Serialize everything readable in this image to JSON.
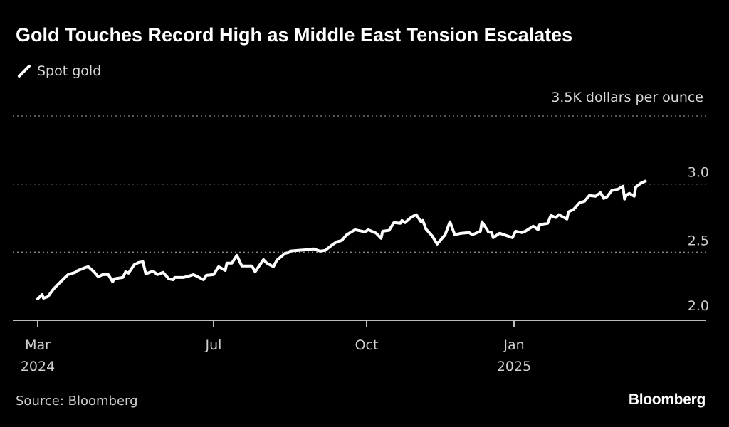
{
  "chart_data": {
    "type": "line",
    "title": "Gold Touches Record High as Middle East Tension Escalates",
    "unit_label": "3.5K dollars per ounce",
    "source": "Source: Bloomberg",
    "logo": "Bloomberg",
    "series": [
      {
        "name": "Spot gold",
        "color": "#ffffff",
        "points": [
          [
            "2024-03-01",
            2.157
          ],
          [
            "2024-03-04",
            2.188
          ],
          [
            "2024-03-05",
            2.162
          ],
          [
            "2024-03-08",
            2.173
          ],
          [
            "2024-03-12",
            2.23
          ],
          [
            "2024-03-15",
            2.262
          ],
          [
            "2024-03-19",
            2.304
          ],
          [
            "2024-03-22",
            2.335
          ],
          [
            "2024-03-27",
            2.351
          ],
          [
            "2024-03-28",
            2.361
          ],
          [
            "2024-04-03",
            2.387
          ],
          [
            "2024-04-05",
            2.393
          ],
          [
            "2024-04-09",
            2.356
          ],
          [
            "2024-04-12",
            2.319
          ],
          [
            "2024-04-15",
            2.335
          ],
          [
            "2024-04-19",
            2.335
          ],
          [
            "2024-04-22",
            2.283
          ],
          [
            "2024-04-23",
            2.304
          ],
          [
            "2024-04-29",
            2.314
          ],
          [
            "2024-05-01",
            2.356
          ],
          [
            "2024-05-03",
            2.346
          ],
          [
            "2024-05-07",
            2.408
          ],
          [
            "2024-05-10",
            2.424
          ],
          [
            "2024-05-13",
            2.429
          ],
          [
            "2024-05-15",
            2.34
          ],
          [
            "2024-05-20",
            2.361
          ],
          [
            "2024-05-23",
            2.335
          ],
          [
            "2024-05-27",
            2.351
          ],
          [
            "2024-05-31",
            2.304
          ],
          [
            "2024-06-03",
            2.298
          ],
          [
            "2024-06-04",
            2.314
          ],
          [
            "2024-06-10",
            2.314
          ],
          [
            "2024-06-14",
            2.325
          ],
          [
            "2024-06-17",
            2.335
          ],
          [
            "2024-06-24",
            2.298
          ],
          [
            "2024-06-26",
            2.33
          ],
          [
            "2024-07-01",
            2.335
          ],
          [
            "2024-07-04",
            2.393
          ],
          [
            "2024-07-08",
            2.366
          ],
          [
            "2024-07-09",
            2.419
          ],
          [
            "2024-07-12",
            2.419
          ],
          [
            "2024-07-15",
            2.476
          ],
          [
            "2024-07-18",
            2.398
          ],
          [
            "2024-07-24",
            2.398
          ],
          [
            "2024-07-26",
            2.356
          ],
          [
            "2024-07-31",
            2.445
          ],
          [
            "2024-08-02",
            2.419
          ],
          [
            "2024-08-06",
            2.393
          ],
          [
            "2024-08-08",
            2.44
          ],
          [
            "2024-08-13",
            2.492
          ],
          [
            "2024-08-15",
            2.497
          ],
          [
            "2024-08-16",
            2.508
          ],
          [
            "2024-08-21",
            2.513
          ],
          [
            "2024-08-26",
            2.518
          ],
          [
            "2024-08-30",
            2.524
          ],
          [
            "2024-09-03",
            2.508
          ],
          [
            "2024-09-06",
            2.513
          ],
          [
            "2024-09-11",
            2.56
          ],
          [
            "2024-09-13",
            2.576
          ],
          [
            "2024-09-16",
            2.586
          ],
          [
            "2024-09-19",
            2.628
          ],
          [
            "2024-09-24",
            2.665
          ],
          [
            "2024-09-30",
            2.649
          ],
          [
            "2024-10-02",
            2.665
          ],
          [
            "2024-10-07",
            2.639
          ],
          [
            "2024-10-10",
            2.602
          ],
          [
            "2024-10-11",
            2.654
          ],
          [
            "2024-10-15",
            2.66
          ],
          [
            "2024-10-18",
            2.717
          ],
          [
            "2024-10-22",
            2.712
          ],
          [
            "2024-10-23",
            2.733
          ],
          [
            "2024-10-25",
            2.717
          ],
          [
            "2024-10-28",
            2.749
          ],
          [
            "2024-10-30",
            2.764
          ],
          [
            "2024-11-01",
            2.775
          ],
          [
            "2024-11-04",
            2.723
          ],
          [
            "2024-11-05",
            2.733
          ],
          [
            "2024-11-07",
            2.67
          ],
          [
            "2024-11-11",
            2.618
          ],
          [
            "2024-11-14",
            2.56
          ],
          [
            "2024-11-19",
            2.628
          ],
          [
            "2024-11-22",
            2.723
          ],
          [
            "2024-11-25",
            2.628
          ],
          [
            "2024-11-29",
            2.639
          ],
          [
            "2024-12-04",
            2.644
          ],
          [
            "2024-12-06",
            2.628
          ],
          [
            "2024-12-11",
            2.654
          ],
          [
            "2024-12-12",
            2.723
          ],
          [
            "2024-12-16",
            2.649
          ],
          [
            "2024-12-18",
            2.644
          ],
          [
            "2024-12-19",
            2.607
          ],
          [
            "2024-12-23",
            2.639
          ],
          [
            "2024-12-27",
            2.623
          ],
          [
            "2024-12-31",
            2.607
          ],
          [
            "2025-01-02",
            2.654
          ],
          [
            "2025-01-06",
            2.644
          ],
          [
            "2025-01-08",
            2.654
          ],
          [
            "2025-01-13",
            2.691
          ],
          [
            "2025-01-16",
            2.665
          ],
          [
            "2025-01-17",
            2.702
          ],
          [
            "2025-01-22",
            2.712
          ],
          [
            "2025-01-24",
            2.77
          ],
          [
            "2025-01-27",
            2.754
          ],
          [
            "2025-01-29",
            2.775
          ],
          [
            "2025-02-03",
            2.743
          ],
          [
            "2025-02-04",
            2.796
          ],
          [
            "2025-02-07",
            2.812
          ],
          [
            "2025-02-11",
            2.864
          ],
          [
            "2025-02-14",
            2.874
          ],
          [
            "2025-02-17",
            2.916
          ],
          [
            "2025-02-21",
            2.911
          ],
          [
            "2025-02-24",
            2.937
          ],
          [
            "2025-02-26",
            2.895
          ],
          [
            "2025-02-28",
            2.906
          ],
          [
            "2025-03-03",
            2.953
          ],
          [
            "2025-03-07",
            2.963
          ],
          [
            "2025-03-10",
            2.984
          ],
          [
            "2025-03-11",
            2.89
          ],
          [
            "2025-03-12",
            2.916
          ],
          [
            "2025-03-14",
            2.932
          ],
          [
            "2025-03-17",
            2.911
          ],
          [
            "2025-03-18",
            2.979
          ],
          [
            "2025-03-20",
            2.995
          ],
          [
            "2025-03-21",
            3.005
          ],
          [
            "2025-03-24",
            3.021
          ]
        ]
      }
    ],
    "y_axis": {
      "range": [
        2.0,
        3.5
      ],
      "ticks": [
        {
          "value": 2.0,
          "label": "2.0"
        },
        {
          "value": 2.5,
          "label": "2.5"
        },
        {
          "value": 3.0,
          "label": "3.0"
        },
        {
          "value": 3.5,
          "label": "3.5K dollars per ounce"
        }
      ],
      "position": "right",
      "grid": true,
      "grid_style": "dotted"
    },
    "x_axis": {
      "ticks": [
        {
          "date": "2024-03-01",
          "label": "Mar",
          "sublabel": "2024"
        },
        {
          "date": "2024-07-01",
          "label": "Jul",
          "sublabel": ""
        },
        {
          "date": "2024-10-01",
          "label": "Oct",
          "sublabel": ""
        },
        {
          "date": "2025-01-01",
          "label": "Jan",
          "sublabel": "2025"
        }
      ]
    },
    "legend": {
      "placement": "top-left",
      "entries": [
        "Spot gold"
      ]
    },
    "colors": {
      "background": "#000000",
      "line": "#ffffff",
      "text": "#d0d0d0",
      "grid": "#8a8a8a"
    }
  }
}
